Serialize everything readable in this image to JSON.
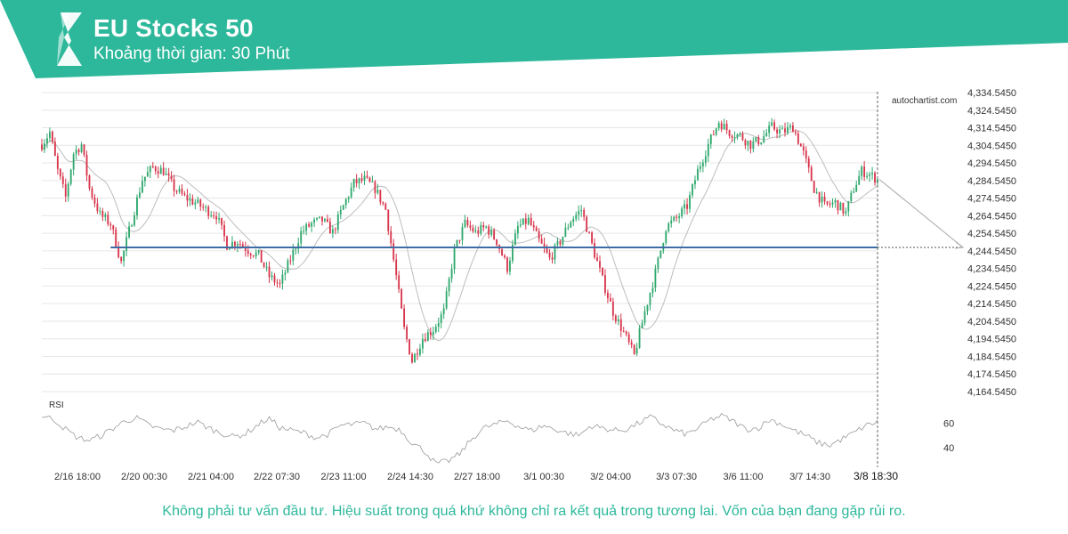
{
  "header": {
    "title": "EU Stocks 50",
    "subtitle": "Khoảng thời gian: 30 Phút",
    "brand_color": "#2db89b"
  },
  "watermark": "autochartist.com",
  "disclaimer": "Không phải tư vấn đầu tư. Hiệu suất trong quá khứ không chỉ ra kết quả trong tương lai. Vốn của bạn đang gặp rủi ro.",
  "chart_data": {
    "type": "candlestick",
    "timeframe": "30 Phút",
    "price_axis": {
      "ticks": [
        "4,334.5450",
        "4,324.5450",
        "4,314.5450",
        "4,304.5450",
        "4,294.5450",
        "4,284.5450",
        "4,274.5450",
        "4,264.5450",
        "4,254.5450",
        "4,244.5450",
        "4,234.5450",
        "4,224.5450",
        "4,214.5450",
        "4,204.5450",
        "4,194.5450",
        "4,184.5450",
        "4,174.5450",
        "4,164.5450"
      ],
      "ylim": [
        4164.545,
        4334.545
      ]
    },
    "time_axis": {
      "ticks": [
        "2/16 18:00",
        "2/20 00:30",
        "2/21 04:00",
        "2/22 07:30",
        "2/23 11:00",
        "2/24 14:30",
        "2/27 18:00",
        "3/1 00:30",
        "3/2 04:00",
        "3/3 07:30",
        "3/6 11:00",
        "3/7 14:30",
        "3/8 18:30"
      ],
      "current_label": "3/8 18:30"
    },
    "price_path": [
      [
        0,
        4305
      ],
      [
        3,
        4312
      ],
      [
        6,
        4290
      ],
      [
        9,
        4275
      ],
      [
        12,
        4300
      ],
      [
        15,
        4305
      ],
      [
        18,
        4280
      ],
      [
        22,
        4265
      ],
      [
        26,
        4260
      ],
      [
        30,
        4238
      ],
      [
        34,
        4262
      ],
      [
        38,
        4285
      ],
      [
        42,
        4292
      ],
      [
        46,
        4290
      ],
      [
        50,
        4280
      ],
      [
        54,
        4275
      ],
      [
        58,
        4272
      ],
      [
        62,
        4268
      ],
      [
        66,
        4265
      ],
      [
        70,
        4248
      ],
      [
        74,
        4250
      ],
      [
        78,
        4245
      ],
      [
        82,
        4242
      ],
      [
        86,
        4230
      ],
      [
        90,
        4225
      ],
      [
        94,
        4240
      ],
      [
        98,
        4255
      ],
      [
        102,
        4260
      ],
      [
        106,
        4262
      ],
      [
        110,
        4255
      ],
      [
        114,
        4270
      ],
      [
        118,
        4283
      ],
      [
        122,
        4285
      ],
      [
        126,
        4280
      ],
      [
        130,
        4268
      ],
      [
        134,
        4230
      ],
      [
        137,
        4200
      ],
      [
        140,
        4182
      ],
      [
        144,
        4195
      ],
      [
        148,
        4200
      ],
      [
        152,
        4210
      ],
      [
        156,
        4245
      ],
      [
        160,
        4260
      ],
      [
        164,
        4255
      ],
      [
        168,
        4258
      ],
      [
        172,
        4250
      ],
      [
        176,
        4235
      ],
      [
        180,
        4258
      ],
      [
        184,
        4262
      ],
      [
        188,
        4250
      ],
      [
        192,
        4240
      ],
      [
        196,
        4250
      ],
      [
        200,
        4262
      ],
      [
        204,
        4268
      ],
      [
        208,
        4248
      ],
      [
        212,
        4228
      ],
      [
        216,
        4210
      ],
      [
        220,
        4198
      ],
      [
        224,
        4185
      ],
      [
        228,
        4210
      ],
      [
        232,
        4232
      ],
      [
        236,
        4258
      ],
      [
        240,
        4263
      ],
      [
        244,
        4270
      ],
      [
        248,
        4290
      ],
      [
        252,
        4305
      ],
      [
        256,
        4318
      ],
      [
        260,
        4312
      ],
      [
        264,
        4310
      ],
      [
        268,
        4305
      ],
      [
        272,
        4308
      ],
      [
        276,
        4315
      ],
      [
        280,
        4312
      ],
      [
        284,
        4315
      ],
      [
        288,
        4300
      ],
      [
        292,
        4280
      ],
      [
        296,
        4270
      ],
      [
        300,
        4272
      ],
      [
        304,
        4266
      ],
      [
        307,
        4280
      ],
      [
        310,
        4290
      ],
      [
        313,
        4288
      ],
      [
        316,
        4285
      ]
    ],
    "moving_average": "smooth grey line (period unlabelled)",
    "horizontal_level": 4246.5,
    "forecast_end_value": 4246.5,
    "indicator": {
      "name": "RSI",
      "ticks": [
        "60",
        "40"
      ],
      "ylim": [
        22,
        82
      ],
      "values": [
        66,
        63,
        55,
        48,
        46,
        50,
        56,
        62,
        64,
        58,
        55,
        54,
        57,
        61,
        56,
        52,
        49,
        51,
        58,
        64,
        56,
        54,
        52,
        48,
        51,
        58,
        59,
        60,
        55,
        57,
        55,
        44,
        38,
        27,
        29,
        35,
        47,
        56,
        59,
        62,
        57,
        54,
        58,
        55,
        52,
        50,
        58,
        56,
        54,
        55,
        60,
        65,
        59,
        54,
        51,
        56,
        63,
        66,
        61,
        55,
        56,
        63,
        59,
        54,
        50,
        44,
        42,
        47,
        52,
        58,
        61
      ]
    },
    "colors": {
      "bull": "#2ea86c",
      "bear": "#d8344a",
      "level_line": "#3e6da6",
      "moving_average": "#bdbdbd",
      "rsi": "#9a9a9a"
    }
  }
}
